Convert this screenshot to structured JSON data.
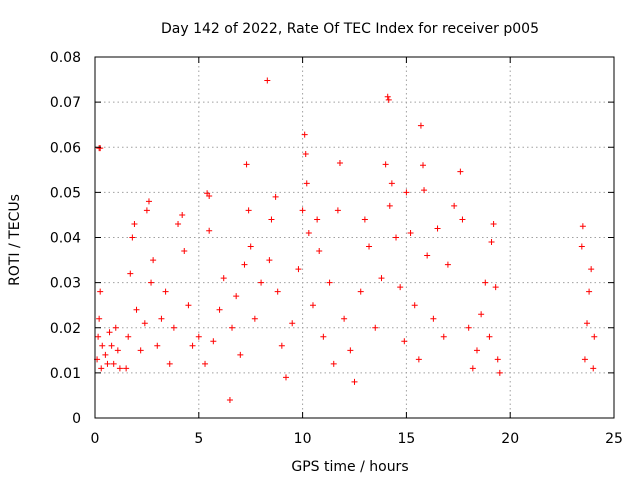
{
  "chart_data": {
    "type": "scatter",
    "title": "Day 142 of 2022, Rate Of TEC Index for receiver p005",
    "xlabel": "GPS time / hours",
    "ylabel": "ROTI / TECUs",
    "xlim": [
      0,
      25
    ],
    "ylim": [
      0,
      0.08
    ],
    "x_ticks": [
      "0",
      "5",
      "10",
      "15",
      "20",
      "25"
    ],
    "y_ticks": [
      "0",
      "0.01",
      "0.02",
      "0.03",
      "0.04",
      "0.05",
      "0.06",
      "0.07",
      "0.08"
    ],
    "grid": true,
    "marker": "plus",
    "marker_color": "#ff0000",
    "series": [
      {
        "points": [
          [
            0.1,
            0.013
          ],
          [
            0.15,
            0.018
          ],
          [
            0.2,
            0.022
          ],
          [
            0.25,
            0.028
          ],
          [
            0.3,
            0.011
          ],
          [
            0.35,
            0.016
          ],
          [
            0.2,
            0.0598
          ],
          [
            0.25,
            0.0598
          ],
          [
            0.5,
            0.014
          ],
          [
            0.6,
            0.012
          ],
          [
            0.7,
            0.019
          ],
          [
            0.8,
            0.016
          ],
          [
            0.9,
            0.012
          ],
          [
            1.0,
            0.02
          ],
          [
            1.1,
            0.015
          ],
          [
            1.2,
            0.011
          ],
          [
            1.5,
            0.011
          ],
          [
            1.6,
            0.018
          ],
          [
            1.7,
            0.032
          ],
          [
            1.8,
            0.04
          ],
          [
            1.9,
            0.043
          ],
          [
            2.0,
            0.024
          ],
          [
            2.2,
            0.015
          ],
          [
            2.4,
            0.021
          ],
          [
            2.5,
            0.046
          ],
          [
            2.6,
            0.048
          ],
          [
            2.7,
            0.03
          ],
          [
            2.8,
            0.035
          ],
          [
            3.0,
            0.016
          ],
          [
            3.2,
            0.022
          ],
          [
            3.4,
            0.028
          ],
          [
            3.6,
            0.012
          ],
          [
            3.8,
            0.02
          ],
          [
            4.0,
            0.043
          ],
          [
            4.2,
            0.045
          ],
          [
            4.3,
            0.037
          ],
          [
            4.5,
            0.025
          ],
          [
            4.7,
            0.016
          ],
          [
            5.0,
            0.018
          ],
          [
            5.3,
            0.012
          ],
          [
            5.4,
            0.0498
          ],
          [
            5.5,
            0.0492
          ],
          [
            5.5,
            0.0415
          ],
          [
            5.7,
            0.017
          ],
          [
            6.0,
            0.024
          ],
          [
            6.2,
            0.031
          ],
          [
            6.5,
            0.004
          ],
          [
            6.6,
            0.02
          ],
          [
            6.8,
            0.027
          ],
          [
            7.0,
            0.014
          ],
          [
            7.2,
            0.034
          ],
          [
            7.3,
            0.0562
          ],
          [
            7.4,
            0.046
          ],
          [
            7.5,
            0.038
          ],
          [
            7.7,
            0.022
          ],
          [
            8.0,
            0.03
          ],
          [
            8.3,
            0.0748
          ],
          [
            8.4,
            0.035
          ],
          [
            8.5,
            0.044
          ],
          [
            8.7,
            0.049
          ],
          [
            8.8,
            0.028
          ],
          [
            9.0,
            0.016
          ],
          [
            9.2,
            0.009
          ],
          [
            9.5,
            0.021
          ],
          [
            9.8,
            0.033
          ],
          [
            10.0,
            0.046
          ],
          [
            10.1,
            0.0628
          ],
          [
            10.15,
            0.0585
          ],
          [
            10.2,
            0.052
          ],
          [
            10.3,
            0.041
          ],
          [
            10.5,
            0.025
          ],
          [
            10.7,
            0.044
          ],
          [
            10.8,
            0.037
          ],
          [
            11.0,
            0.018
          ],
          [
            11.3,
            0.03
          ],
          [
            11.5,
            0.012
          ],
          [
            11.7,
            0.046
          ],
          [
            11.8,
            0.0565
          ],
          [
            12.0,
            0.022
          ],
          [
            12.3,
            0.015
          ],
          [
            12.5,
            0.008
          ],
          [
            12.8,
            0.028
          ],
          [
            13.0,
            0.044
          ],
          [
            13.2,
            0.038
          ],
          [
            13.5,
            0.02
          ],
          [
            13.8,
            0.031
          ],
          [
            14.0,
            0.0562
          ],
          [
            14.1,
            0.0712
          ],
          [
            14.15,
            0.0705
          ],
          [
            14.2,
            0.047
          ],
          [
            14.3,
            0.052
          ],
          [
            14.5,
            0.04
          ],
          [
            14.7,
            0.029
          ],
          [
            14.9,
            0.017
          ],
          [
            15.0,
            0.05
          ],
          [
            15.2,
            0.041
          ],
          [
            15.4,
            0.025
          ],
          [
            15.6,
            0.013
          ],
          [
            15.7,
            0.0648
          ],
          [
            15.8,
            0.056
          ],
          [
            15.85,
            0.0505
          ],
          [
            16.0,
            0.036
          ],
          [
            16.3,
            0.022
          ],
          [
            16.5,
            0.042
          ],
          [
            16.8,
            0.018
          ],
          [
            17.0,
            0.034
          ],
          [
            17.3,
            0.047
          ],
          [
            17.6,
            0.0546
          ],
          [
            17.7,
            0.044
          ],
          [
            18.0,
            0.02
          ],
          [
            18.2,
            0.011
          ],
          [
            18.4,
            0.015
          ],
          [
            18.6,
            0.023
          ],
          [
            18.8,
            0.03
          ],
          [
            19.0,
            0.018
          ],
          [
            19.1,
            0.039
          ],
          [
            19.2,
            0.043
          ],
          [
            19.3,
            0.029
          ],
          [
            19.4,
            0.013
          ],
          [
            19.5,
            0.01
          ],
          [
            23.45,
            0.038
          ],
          [
            23.5,
            0.0425
          ],
          [
            23.6,
            0.013
          ],
          [
            23.7,
            0.021
          ],
          [
            23.8,
            0.028
          ],
          [
            23.9,
            0.033
          ],
          [
            24.0,
            0.011
          ],
          [
            24.05,
            0.018
          ]
        ]
      }
    ]
  }
}
